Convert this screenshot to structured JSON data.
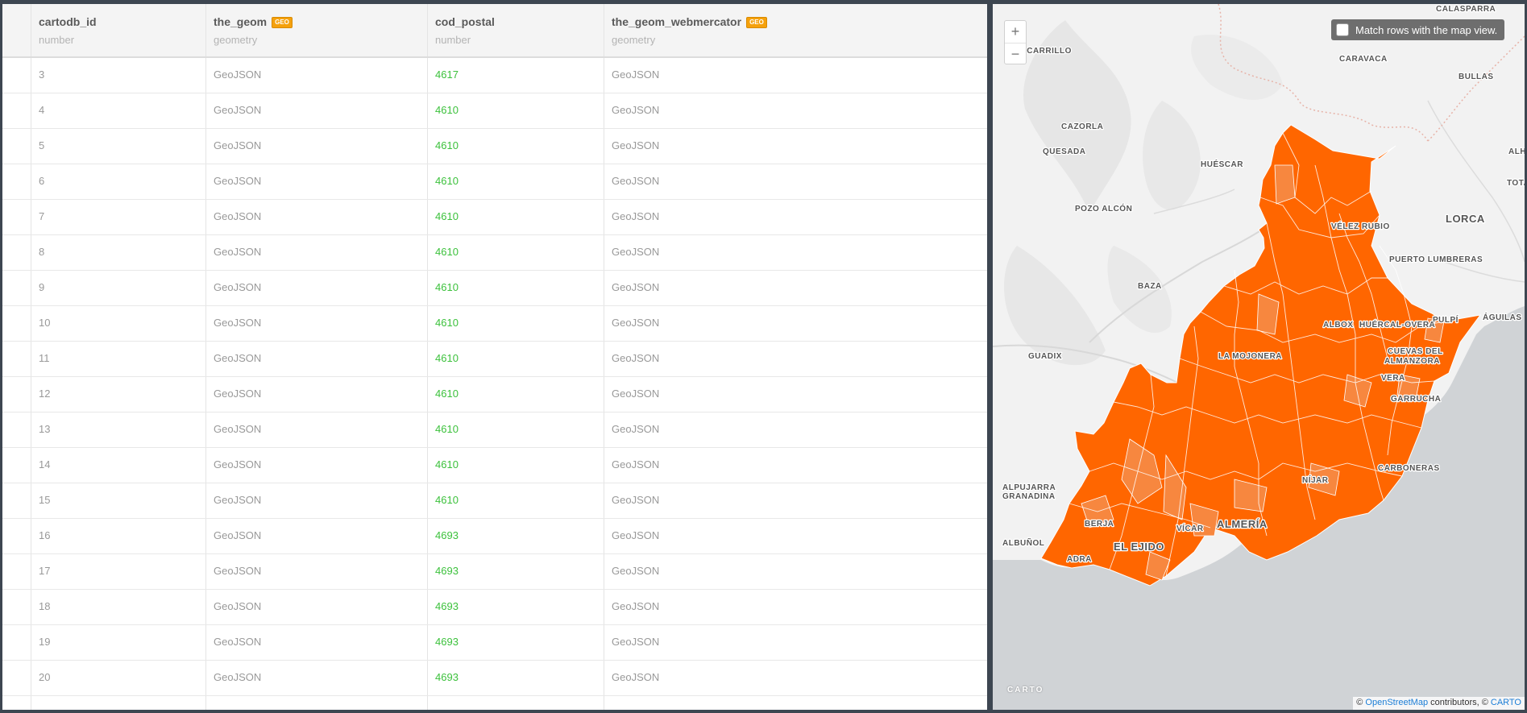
{
  "table": {
    "columns": [
      {
        "name": "cartodb_id",
        "type": "number",
        "geo": false
      },
      {
        "name": "the_geom",
        "type": "geometry",
        "geo": true,
        "badge": "GEO"
      },
      {
        "name": "cod_postal",
        "type": "number",
        "geo": false
      },
      {
        "name": "the_geom_webmercator",
        "type": "geometry",
        "geo": true,
        "badge": "GEO"
      }
    ],
    "rows": [
      [
        "3",
        "GeoJSON",
        "4617",
        "GeoJSON"
      ],
      [
        "4",
        "GeoJSON",
        "4610",
        "GeoJSON"
      ],
      [
        "5",
        "GeoJSON",
        "4610",
        "GeoJSON"
      ],
      [
        "6",
        "GeoJSON",
        "4610",
        "GeoJSON"
      ],
      [
        "7",
        "GeoJSON",
        "4610",
        "GeoJSON"
      ],
      [
        "8",
        "GeoJSON",
        "4610",
        "GeoJSON"
      ],
      [
        "9",
        "GeoJSON",
        "4610",
        "GeoJSON"
      ],
      [
        "10",
        "GeoJSON",
        "4610",
        "GeoJSON"
      ],
      [
        "11",
        "GeoJSON",
        "4610",
        "GeoJSON"
      ],
      [
        "12",
        "GeoJSON",
        "4610",
        "GeoJSON"
      ],
      [
        "13",
        "GeoJSON",
        "4610",
        "GeoJSON"
      ],
      [
        "14",
        "GeoJSON",
        "4610",
        "GeoJSON"
      ],
      [
        "15",
        "GeoJSON",
        "4610",
        "GeoJSON"
      ],
      [
        "16",
        "GeoJSON",
        "4693",
        "GeoJSON"
      ],
      [
        "17",
        "GeoJSON",
        "4693",
        "GeoJSON"
      ],
      [
        "18",
        "GeoJSON",
        "4693",
        "GeoJSON"
      ],
      [
        "19",
        "GeoJSON",
        "4693",
        "GeoJSON"
      ],
      [
        "20",
        "GeoJSON",
        "4693",
        "GeoJSON"
      ],
      [
        "",
        "",
        "",
        ""
      ]
    ]
  },
  "map": {
    "zoom_in": "+",
    "zoom_out": "−",
    "match_rows_label": "Match rows with the map view.",
    "carto_logo": "CARTO",
    "attribution": {
      "prefix": "© ",
      "osm": "OpenStreetMap",
      "middle": " contributors, © ",
      "carto": "CARTO"
    },
    "fill_color": "#ff6600",
    "fill_light_color": "#f7873f",
    "sea_color": "#d0d3d6",
    "places": [
      {
        "name": "CALASPARRA",
        "big": false
      },
      {
        "name": "ILLACARRILLO",
        "big": false
      },
      {
        "name": "CARAVACA",
        "big": false
      },
      {
        "name": "BULLAS",
        "big": false
      },
      {
        "name": "CAZORLA",
        "big": false
      },
      {
        "name": "QUESADA",
        "big": false
      },
      {
        "name": "ALHA",
        "big": false
      },
      {
        "name": "HUÉSCAR",
        "big": false
      },
      {
        "name": "TOTA",
        "big": false
      },
      {
        "name": "POZO ALCÓN",
        "big": false
      },
      {
        "name": "LORCA",
        "big": true
      },
      {
        "name": "VÉLEZ RUBIO",
        "big": false
      },
      {
        "name": "PUERTO LUMBRERAS",
        "big": false
      },
      {
        "name": "BAZA",
        "big": false
      },
      {
        "name": "ÁGUILAS",
        "big": false
      },
      {
        "name": "PULPÍ",
        "big": false
      },
      {
        "name": "ALBOX",
        "big": false
      },
      {
        "name": "HUÉRCAL-OVERA",
        "big": false
      },
      {
        "name": "GUADIX",
        "big": false
      },
      {
        "name": "LA MOJONERA",
        "big": false
      },
      {
        "name": "CUEVAS DEL",
        "big": false
      },
      {
        "name": "ALMANZORA",
        "big": false
      },
      {
        "name": "VERA",
        "big": false
      },
      {
        "name": "GARRUCHA",
        "big": false
      },
      {
        "name": "CARBONERAS",
        "big": false
      },
      {
        "name": "NÍJAR",
        "big": false
      },
      {
        "name": "ALPUJARRA",
        "big": false
      },
      {
        "name": "GRANADINA",
        "big": false
      },
      {
        "name": "BERJA",
        "big": false
      },
      {
        "name": "VÍCAR",
        "big": false
      },
      {
        "name": "ALMERÍA",
        "big": true
      },
      {
        "name": "ALBUÑOL",
        "big": false
      },
      {
        "name": "EL EJIDO",
        "big": true
      },
      {
        "name": "ADRA",
        "big": false
      }
    ]
  }
}
